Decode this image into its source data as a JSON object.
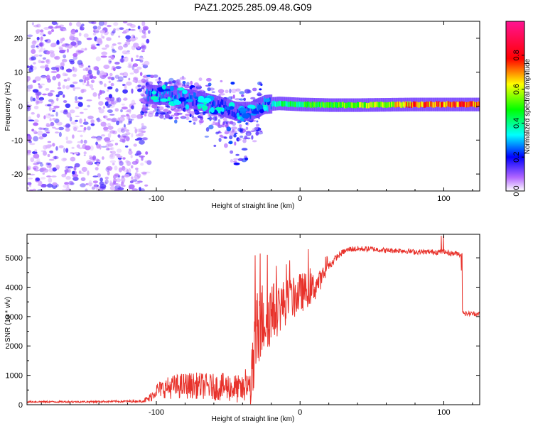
{
  "title": "PAZ1.2025.285.09.48.G09",
  "chart_data": [
    {
      "type": "heatmap",
      "xlabel": "Height of straight line (km)",
      "ylabel": "Frequency (Hz)",
      "xlim": [
        -190,
        125
      ],
      "ylim": [
        -25,
        25
      ],
      "xticks": [
        -100,
        0,
        100
      ],
      "xtick_labels": [
        "-100",
        "0",
        "100"
      ],
      "yticks": [
        -20,
        -10,
        0,
        10,
        20
      ],
      "ytick_labels": [
        "-20",
        "-10",
        "0",
        "10",
        "20"
      ],
      "colorbar": {
        "label": "Normalized spectral amplitude",
        "range": [
          0.0,
          1.0
        ],
        "ticks": [
          0.0,
          0.2,
          0.4,
          0.6,
          0.8
        ],
        "tick_labels": [
          "0.0",
          "0.2",
          "0.4",
          "0.6",
          "0.8"
        ]
      },
      "colormap": [
        "#ffffff",
        "#9b30ff",
        "#0000ff",
        "#00ffff",
        "#00ff00",
        "#ffff00",
        "#ff0000",
        "#ff1493"
      ],
      "ridge": {
        "x": [
          -105,
          -90,
          -75,
          -60,
          -45,
          -35,
          -25,
          -15,
          0,
          20,
          40,
          60,
          80,
          100,
          125
        ],
        "freq": [
          3.5,
          3.0,
          2.0,
          0.5,
          -1.5,
          -1.5,
          0.5,
          0.8,
          0.5,
          0.3,
          0.3,
          0.4,
          0.5,
          0.5,
          0.5
        ],
        "amplitude": [
          0.3,
          0.3,
          0.28,
          0.25,
          0.22,
          0.25,
          0.3,
          0.4,
          0.45,
          0.5,
          0.55,
          0.6,
          0.75,
          0.8,
          0.75
        ]
      }
    },
    {
      "type": "line",
      "xlabel": "Height of straight line (km)",
      "ylabel": "SNR (10 * v/v)",
      "xlim": [
        -190,
        125
      ],
      "ylim": [
        0,
        5800
      ],
      "xticks": [
        -100,
        0,
        100
      ],
      "xtick_labels": [
        "-100",
        "0",
        "100"
      ],
      "yticks": [
        0,
        1000,
        2000,
        3000,
        4000,
        5000
      ],
      "ytick_labels": [
        "0",
        "1000",
        "2000",
        "3000",
        "4000",
        "5000"
      ],
      "color": "#e8322b",
      "series": [
        {
          "name": "SNR",
          "x": [
            -190,
            -150,
            -110,
            -105,
            -100,
            -90,
            -80,
            -70,
            -60,
            -50,
            -45,
            -40,
            -35,
            -33,
            -30,
            -25,
            -20,
            -15,
            -10,
            -5,
            0,
            5,
            10,
            15,
            20,
            25,
            30,
            35,
            40,
            50,
            60,
            70,
            80,
            90,
            100,
            105,
            110,
            112,
            113,
            115,
            120,
            125
          ],
          "y": [
            100,
            100,
            120,
            200,
            500,
            600,
            650,
            650,
            600,
            600,
            550,
            500,
            600,
            1000,
            2500,
            3000,
            3100,
            3300,
            3500,
            3600,
            3800,
            3900,
            4000,
            4300,
            4700,
            5000,
            5200,
            5300,
            5300,
            5300,
            5250,
            5250,
            5200,
            5200,
            5200,
            5150,
            5150,
            5100,
            3200,
            3100,
            3100,
            3100
          ],
          "noise": [
            30,
            30,
            40,
            150,
            250,
            400,
            450,
            450,
            450,
            500,
            500,
            450,
            600,
            1200,
            1500,
            1300,
            1100,
            900,
            800,
            700,
            700,
            600,
            500,
            300,
            200,
            100,
            100,
            100,
            100,
            90,
            90,
            90,
            90,
            90,
            90,
            90,
            90,
            90,
            80,
            80,
            80,
            80
          ]
        }
      ]
    }
  ]
}
